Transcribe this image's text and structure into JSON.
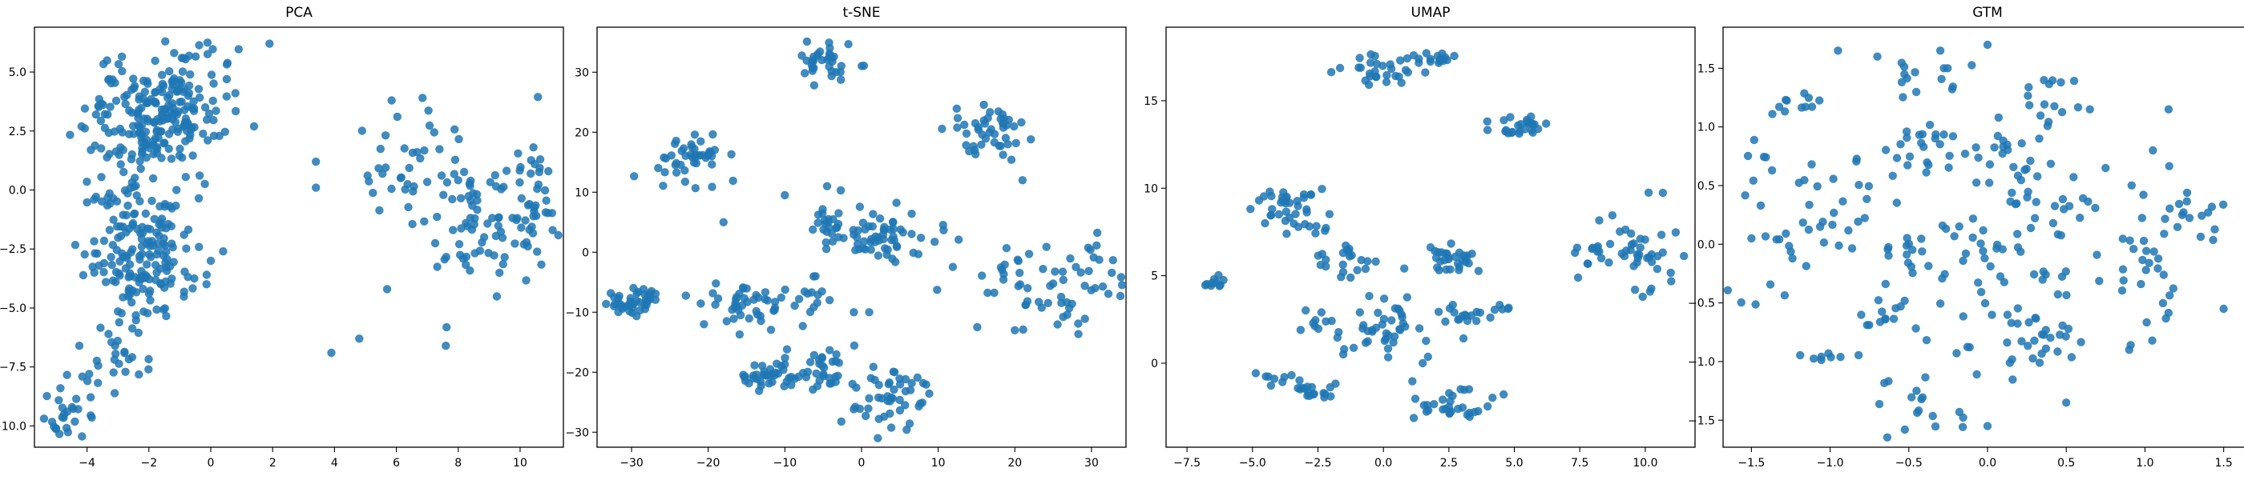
{
  "chart_data": [
    {
      "type": "scatter",
      "title": "PCA",
      "xlim": [
        -5.7,
        11.4
      ],
      "ylim": [
        -10.9,
        6.9
      ],
      "xticks": [
        -4,
        -2,
        0,
        2,
        4,
        6,
        8,
        10
      ],
      "yticks": [
        -10.0,
        -7.5,
        -5.0,
        -2.5,
        0.0,
        2.5,
        5.0
      ],
      "xtick_labels": [
        "−4",
        "−2",
        "0",
        "2",
        "4",
        "6",
        "8",
        "10"
      ],
      "ytick_labels": [
        "−10.0",
        "−7.5",
        "−5.0",
        "−2.5",
        "0.0",
        "2.5",
        "5.0"
      ],
      "color": "#1f77b4",
      "clusters": [
        {
          "cx": -1.8,
          "cy": 3.3,
          "sx": 1.0,
          "sy": 1.1,
          "n": 190
        },
        {
          "cx": -2.0,
          "cy": -2.8,
          "sx": 0.9,
          "sy": 1.3,
          "n": 150
        },
        {
          "cx": -3.0,
          "cy": 0.5,
          "sx": 0.7,
          "sy": 2.0,
          "n": 60
        },
        {
          "cx": -4.6,
          "cy": -9.3,
          "sx": 0.45,
          "sy": 0.7,
          "n": 28
        },
        {
          "cx": -3.0,
          "cy": -6.5,
          "sx": 0.6,
          "sy": 0.8,
          "n": 25
        },
        {
          "cx": -0.3,
          "cy": 5.2,
          "sx": 0.5,
          "sy": 0.6,
          "n": 15
        },
        {
          "cx": 6.5,
          "cy": 1.0,
          "sx": 0.8,
          "sy": 1.5,
          "n": 40
        },
        {
          "cx": 8.8,
          "cy": -1.3,
          "sx": 1.0,
          "sy": 1.5,
          "n": 70
        },
        {
          "cx": 10.4,
          "cy": -1.0,
          "sx": 0.4,
          "sy": 1.8,
          "n": 35
        }
      ],
      "points": [
        [
          1.9,
          6.2
        ],
        [
          1.4,
          2.7
        ],
        [
          3.4,
          1.2
        ],
        [
          3.4,
          0.1
        ],
        [
          3.9,
          -6.9
        ],
        [
          4.8,
          -6.3
        ],
        [
          7.6,
          -6.6
        ],
        [
          0.4,
          -2.6
        ],
        [
          0.0,
          -3.0
        ],
        [
          5.7,
          -4.2
        ],
        [
          -5.0,
          -10.1
        ]
      ]
    },
    {
      "type": "scatter",
      "title": "t-SNE",
      "xlim": [
        -34.5,
        34.5
      ],
      "ylim": [
        -32.5,
        37.5
      ],
      "xticks": [
        -30,
        -20,
        -10,
        0,
        10,
        20,
        30
      ],
      "yticks": [
        -30,
        -20,
        -10,
        0,
        10,
        20,
        30
      ],
      "xtick_labels": [
        "−30",
        "−20",
        "−10",
        "0",
        "10",
        "20",
        "30"
      ],
      "ytick_labels": [
        "−30",
        "−20",
        "−10",
        "0",
        "10",
        "20",
        "30"
      ],
      "color": "#1f77b4",
      "clusters": [
        {
          "cx": -5.0,
          "cy": 31.5,
          "sx": 2.2,
          "sy": 1.6,
          "n": 35
        },
        {
          "cx": -22.5,
          "cy": 15.5,
          "sx": 2.3,
          "sy": 2.0,
          "n": 45
        },
        {
          "cx": 17.0,
          "cy": 20.0,
          "sx": 2.8,
          "sy": 2.1,
          "n": 45
        },
        {
          "cx": -30.0,
          "cy": -8.0,
          "sx": 2.2,
          "sy": 1.3,
          "n": 45
        },
        {
          "cx": -15.0,
          "cy": -9.0,
          "sx": 3.2,
          "sy": 2.0,
          "n": 45
        },
        {
          "cx": -11.0,
          "cy": -20.5,
          "sx": 2.2,
          "sy": 1.3,
          "n": 40
        },
        {
          "cx": -4.0,
          "cy": -19.0,
          "sx": 2.2,
          "sy": 2.5,
          "n": 30
        },
        {
          "cx": 2.5,
          "cy": -25.0,
          "sx": 2.5,
          "sy": 2.5,
          "n": 35
        },
        {
          "cx": 6.0,
          "cy": -21.0,
          "sx": 1.5,
          "sy": 1.2,
          "n": 12
        },
        {
          "cx": 3.0,
          "cy": 2.0,
          "sx": 3.5,
          "sy": 2.5,
          "n": 60
        },
        {
          "cx": -4.5,
          "cy": 4.5,
          "sx": 1.2,
          "sy": 2.0,
          "n": 20
        },
        {
          "cx": 25.0,
          "cy": -5.0,
          "sx": 5.0,
          "sy": 3.5,
          "n": 65
        },
        {
          "cx": -6.0,
          "cy": -8.0,
          "sx": 1.5,
          "sy": 1.5,
          "n": 10
        }
      ],
      "points": [
        [
          -10.0,
          9.5
        ],
        [
          -18.0,
          5.0
        ],
        [
          -1.0,
          -10.0
        ],
        [
          21.0,
          12.0
        ],
        [
          20.0,
          -13.0
        ],
        [
          1.0,
          -10.0
        ],
        [
          -4.5,
          11.0
        ],
        [
          -6.0,
          -4.0
        ]
      ]
    },
    {
      "type": "scatter",
      "title": "UMAP",
      "xlim": [
        -8.3,
        11.9
      ],
      "ylim": [
        -4.8,
        19.2
      ],
      "xticks": [
        -7.5,
        -5.0,
        -2.5,
        0.0,
        2.5,
        5.0,
        7.5,
        10.0
      ],
      "yticks": [
        0,
        5,
        10,
        15
      ],
      "xtick_labels": [
        "−7.5",
        "−5.0",
        "−2.5",
        "0.0",
        "2.5",
        "5.0",
        "7.5",
        "10.0"
      ],
      "ytick_labels": [
        "0",
        "5",
        "10",
        "15"
      ],
      "color": "#1f77b4",
      "clusters": [
        {
          "cx": 0.0,
          "cy": 17.0,
          "sx": 0.7,
          "sy": 0.5,
          "n": 30
        },
        {
          "cx": 1.9,
          "cy": 17.4,
          "sx": 0.3,
          "sy": 0.2,
          "n": 15
        },
        {
          "cx": 5.2,
          "cy": 13.5,
          "sx": 0.6,
          "sy": 0.3,
          "n": 25
        },
        {
          "cx": -3.8,
          "cy": 9.0,
          "sx": 0.7,
          "sy": 0.6,
          "n": 35
        },
        {
          "cx": -2.5,
          "cy": 7.5,
          "sx": 0.3,
          "sy": 0.3,
          "n": 6
        },
        {
          "cx": -2.0,
          "cy": 5.8,
          "sx": 0.4,
          "sy": 0.3,
          "n": 6
        },
        {
          "cx": -1.0,
          "cy": 6.0,
          "sx": 0.4,
          "sy": 0.5,
          "n": 15
        },
        {
          "cx": 2.5,
          "cy": 6.0,
          "sx": 0.8,
          "sy": 0.4,
          "n": 30
        },
        {
          "cx": 3.0,
          "cy": 2.8,
          "sx": 0.6,
          "sy": 0.3,
          "n": 15
        },
        {
          "cx": 4.7,
          "cy": 3.2,
          "sx": 0.2,
          "sy": 0.2,
          "n": 4
        },
        {
          "cx": 0.0,
          "cy": 2.0,
          "sx": 1.2,
          "sy": 0.9,
          "n": 45
        },
        {
          "cx": -2.5,
          "cy": 2.3,
          "sx": 0.5,
          "sy": 0.3,
          "n": 8
        },
        {
          "cx": -2.5,
          "cy": -1.5,
          "sx": 0.6,
          "sy": 0.3,
          "n": 18
        },
        {
          "cx": -4.0,
          "cy": -1.0,
          "sx": 0.4,
          "sy": 0.3,
          "n": 8
        },
        {
          "cx": 2.8,
          "cy": -2.5,
          "sx": 0.7,
          "sy": 0.5,
          "n": 30
        },
        {
          "cx": -6.6,
          "cy": 4.6,
          "sx": 0.2,
          "sy": 0.2,
          "n": 10
        },
        {
          "cx": 9.5,
          "cy": 6.2,
          "sx": 1.0,
          "sy": 1.2,
          "n": 45
        },
        {
          "cx": 7.8,
          "cy": 6.7,
          "sx": 0.3,
          "sy": 0.2,
          "n": 6
        }
      ],
      "points": [
        [
          1.5,
          0.0
        ],
        [
          -1.5,
          0.8
        ],
        [
          9.9,
          3.8
        ]
      ]
    },
    {
      "type": "scatter",
      "title": "GTM",
      "xlim": [
        -1.68,
        1.68
      ],
      "ylim": [
        -1.73,
        1.85
      ],
      "xticks": [
        -1.5,
        -1.0,
        -0.5,
        0.0,
        0.5,
        1.0,
        1.5
      ],
      "yticks": [
        -1.5,
        -1.0,
        -0.5,
        0.0,
        0.5,
        1.0,
        1.5
      ],
      "xtick_labels": [
        "−1.5",
        "−1.0",
        "−0.5",
        "0.0",
        "0.5",
        "1.0",
        "1.5"
      ],
      "ytick_labels": [
        "−1.5",
        "−1.0",
        "−0.5",
        "0.0",
        "0.5",
        "1.0",
        "1.5"
      ],
      "color": "#1f77b4",
      "clusters": [
        {
          "cx": -1.2,
          "cy": 1.2,
          "sx": 0.12,
          "sy": 0.05,
          "n": 10
        },
        {
          "cx": -0.5,
          "cy": 1.4,
          "sx": 0.05,
          "sy": 0.12,
          "n": 8
        },
        {
          "cx": -0.25,
          "cy": 1.55,
          "sx": 0.1,
          "sy": 0.1,
          "n": 6
        },
        {
          "cx": 0.45,
          "cy": 1.3,
          "sx": 0.1,
          "sy": 0.15,
          "n": 12
        },
        {
          "cx": -1.4,
          "cy": 0.6,
          "sx": 0.1,
          "sy": 0.2,
          "n": 10
        },
        {
          "cx": -1.0,
          "cy": 0.4,
          "sx": 0.15,
          "sy": 0.25,
          "n": 25
        },
        {
          "cx": -0.5,
          "cy": 0.75,
          "sx": 0.1,
          "sy": 0.15,
          "n": 15
        },
        {
          "cx": -0.2,
          "cy": 0.9,
          "sx": 0.15,
          "sy": 0.15,
          "n": 15
        },
        {
          "cx": 0.2,
          "cy": 0.85,
          "sx": 0.15,
          "sy": 0.2,
          "n": 15
        },
        {
          "cx": 0.45,
          "cy": 0.4,
          "sx": 0.15,
          "sy": 0.15,
          "n": 25
        },
        {
          "cx": 0.05,
          "cy": 0.15,
          "sx": 0.15,
          "sy": 0.2,
          "n": 15
        },
        {
          "cx": -1.25,
          "cy": 0.0,
          "sx": 0.1,
          "sy": 0.1,
          "n": 6
        },
        {
          "cx": -0.4,
          "cy": -0.1,
          "sx": 0.2,
          "sy": 0.15,
          "n": 20
        },
        {
          "cx": 0.2,
          "cy": -0.45,
          "sx": 0.25,
          "sy": 0.2,
          "n": 25
        },
        {
          "cx": -0.7,
          "cy": -0.6,
          "sx": 0.1,
          "sy": 0.1,
          "n": 12
        },
        {
          "cx": 1.05,
          "cy": -0.1,
          "sx": 0.15,
          "sy": 0.35,
          "n": 35
        },
        {
          "cx": 1.35,
          "cy": 0.3,
          "sx": 0.1,
          "sy": 0.1,
          "n": 10
        },
        {
          "cx": -1.0,
          "cy": -0.95,
          "sx": 0.1,
          "sy": 0.05,
          "n": 8
        },
        {
          "cx": -0.5,
          "cy": -1.3,
          "sx": 0.1,
          "sy": 0.15,
          "n": 10
        },
        {
          "cx": -0.3,
          "cy": -1.5,
          "sx": 0.15,
          "sy": 0.1,
          "n": 8
        },
        {
          "cx": 0.1,
          "cy": -0.9,
          "sx": 0.25,
          "sy": 0.15,
          "n": 25
        },
        {
          "cx": -1.4,
          "cy": -0.45,
          "sx": 0.1,
          "sy": 0.05,
          "n": 5
        },
        {
          "cx": 0.45,
          "cy": -0.9,
          "sx": 0.1,
          "sy": 0.1,
          "n": 6
        }
      ],
      "points": [
        [
          -1.5,
          0.05
        ],
        [
          -0.3,
          1.65
        ],
        [
          0.0,
          1.7
        ],
        [
          -0.95,
          1.65
        ],
        [
          0.0,
          -1.55
        ],
        [
          0.5,
          -1.35
        ],
        [
          0.9,
          -0.9
        ],
        [
          0.75,
          0.65
        ],
        [
          0.65,
          1.15
        ],
        [
          1.5,
          -0.55
        ],
        [
          1.15,
          1.15
        ],
        [
          1.05,
          0.8
        ],
        [
          -0.7,
          1.6
        ]
      ]
    }
  ]
}
